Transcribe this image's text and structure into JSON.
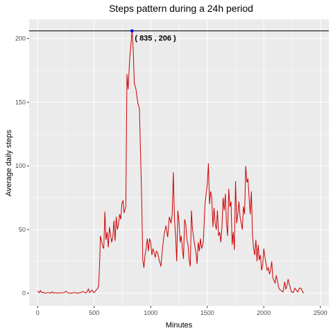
{
  "chart_data": {
    "type": "line",
    "title": "Steps pattern during a 24h period",
    "xlabel": "Minutes",
    "ylabel": "Average daily steps",
    "xlim": [
      -75,
      2575
    ],
    "ylim": [
      -10,
      215
    ],
    "x_ticks": [
      0,
      500,
      1000,
      1500,
      2000,
      2500
    ],
    "y_ticks": [
      0,
      50,
      100,
      150,
      200
    ],
    "grid": true,
    "background": "#ebebeb",
    "series": [
      {
        "color": "#cc0000",
        "points": [
          [
            0,
            1.7
          ],
          [
            15,
            0.3
          ],
          [
            25,
            2.1
          ],
          [
            35,
            0.5
          ],
          [
            50,
            0.8
          ],
          [
            60,
            0.1
          ],
          [
            100,
            0.5
          ],
          [
            115,
            0
          ],
          [
            130,
            1.2
          ],
          [
            140,
            0.2
          ],
          [
            160,
            0.5
          ],
          [
            180,
            0.1
          ],
          [
            200,
            0.3
          ],
          [
            230,
            0.4
          ],
          [
            250,
            1.5
          ],
          [
            270,
            0.2
          ],
          [
            300,
            0.1
          ],
          [
            320,
            0.5
          ],
          [
            340,
            0.3
          ],
          [
            355,
            0.1
          ],
          [
            380,
            0.5
          ],
          [
            400,
            1.3
          ],
          [
            430,
            0.2
          ],
          [
            450,
            3.3
          ],
          [
            460,
            0.5
          ],
          [
            480,
            2.5
          ],
          [
            500,
            0.3
          ],
          [
            520,
            2.8
          ],
          [
            530,
            3.5
          ],
          [
            540,
            6
          ],
          [
            550,
            28
          ],
          [
            555,
            45
          ],
          [
            565,
            41
          ],
          [
            575,
            37
          ],
          [
            585,
            35
          ],
          [
            595,
            64
          ],
          [
            605,
            42
          ],
          [
            615,
            48
          ],
          [
            625,
            36
          ],
          [
            635,
            52
          ],
          [
            645,
            46
          ],
          [
            655,
            40
          ],
          [
            665,
            44
          ],
          [
            675,
            57
          ],
          [
            685,
            41
          ],
          [
            695,
            60
          ],
          [
            705,
            50
          ],
          [
            715,
            54
          ],
          [
            725,
            62
          ],
          [
            735,
            58
          ],
          [
            745,
            70
          ],
          [
            755,
            73
          ],
          [
            765,
            63
          ],
          [
            780,
            68
          ],
          [
            790,
            172
          ],
          [
            800,
            160
          ],
          [
            815,
            185
          ],
          [
            825,
            195
          ],
          [
            835,
            206
          ],
          [
            845,
            192
          ],
          [
            855,
            165
          ],
          [
            870,
            160
          ],
          [
            885,
            150
          ],
          [
            900,
            145
          ],
          [
            910,
            110
          ],
          [
            920,
            75
          ],
          [
            930,
            26
          ],
          [
            940,
            20
          ],
          [
            950,
            30
          ],
          [
            960,
            35
          ],
          [
            970,
            43
          ],
          [
            980,
            33
          ],
          [
            990,
            43
          ],
          [
            1000,
            40
          ],
          [
            1010,
            30
          ],
          [
            1020,
            35
          ],
          [
            1030,
            32
          ],
          [
            1040,
            28
          ],
          [
            1050,
            33
          ],
          [
            1060,
            32
          ],
          [
            1075,
            26
          ],
          [
            1090,
            21
          ],
          [
            1105,
            36
          ],
          [
            1120,
            47
          ],
          [
            1135,
            53
          ],
          [
            1150,
            44
          ],
          [
            1165,
            60
          ],
          [
            1180,
            55
          ],
          [
            1190,
            62
          ],
          [
            1200,
            95
          ],
          [
            1210,
            58
          ],
          [
            1220,
            45
          ],
          [
            1230,
            25
          ],
          [
            1240,
            65
          ],
          [
            1250,
            56
          ],
          [
            1260,
            40
          ],
          [
            1270,
            45
          ],
          [
            1280,
            35
          ],
          [
            1290,
            27
          ],
          [
            1300,
            58
          ],
          [
            1310,
            54
          ],
          [
            1320,
            42
          ],
          [
            1330,
            38
          ],
          [
            1340,
            26
          ],
          [
            1350,
            21
          ],
          [
            1360,
            65
          ],
          [
            1370,
            50
          ],
          [
            1385,
            40
          ],
          [
            1400,
            32
          ],
          [
            1410,
            23
          ],
          [
            1420,
            40
          ],
          [
            1430,
            33
          ],
          [
            1440,
            43
          ],
          [
            1450,
            35
          ],
          [
            1465,
            40
          ],
          [
            1480,
            70
          ],
          [
            1490,
            78
          ],
          [
            1500,
            85
          ],
          [
            1510,
            102
          ],
          [
            1520,
            70
          ],
          [
            1530,
            80
          ],
          [
            1540,
            75
          ],
          [
            1550,
            52
          ],
          [
            1560,
            67
          ],
          [
            1570,
            55
          ],
          [
            1580,
            50
          ],
          [
            1590,
            65
          ],
          [
            1600,
            45
          ],
          [
            1610,
            48
          ],
          [
            1620,
            40
          ],
          [
            1630,
            52
          ],
          [
            1640,
            75
          ],
          [
            1650,
            65
          ],
          [
            1660,
            78
          ],
          [
            1670,
            55
          ],
          [
            1680,
            45
          ],
          [
            1690,
            82
          ],
          [
            1700,
            68
          ],
          [
            1710,
            72
          ],
          [
            1720,
            38
          ],
          [
            1730,
            48
          ],
          [
            1740,
            34
          ],
          [
            1750,
            88
          ],
          [
            1760,
            55
          ],
          [
            1770,
            62
          ],
          [
            1780,
            72
          ],
          [
            1790,
            60
          ],
          [
            1800,
            55
          ],
          [
            1810,
            50
          ],
          [
            1820,
            68
          ],
          [
            1830,
            62
          ],
          [
            1840,
            100
          ],
          [
            1850,
            87
          ],
          [
            1860,
            90
          ],
          [
            1870,
            75
          ],
          [
            1880,
            62
          ],
          [
            1890,
            80
          ],
          [
            1900,
            46
          ],
          [
            1910,
            35
          ],
          [
            1920,
            30
          ],
          [
            1930,
            42
          ],
          [
            1940,
            25
          ],
          [
            1950,
            38
          ],
          [
            1960,
            26
          ],
          [
            1970,
            30
          ],
          [
            1980,
            18
          ],
          [
            1990,
            22
          ],
          [
            2000,
            35
          ],
          [
            2010,
            28
          ],
          [
            2020,
            23
          ],
          [
            2030,
            18
          ],
          [
            2040,
            20
          ],
          [
            2050,
            15
          ],
          [
            2060,
            18
          ],
          [
            2070,
            25
          ],
          [
            2080,
            12
          ],
          [
            2090,
            10
          ],
          [
            2100,
            8
          ],
          [
            2110,
            14
          ],
          [
            2120,
            10
          ],
          [
            2130,
            5
          ],
          [
            2140,
            3
          ],
          [
            2155,
            2
          ],
          [
            2170,
            1
          ],
          [
            2185,
            9
          ],
          [
            2195,
            3
          ],
          [
            2205,
            6
          ],
          [
            2215,
            11
          ],
          [
            2225,
            7
          ],
          [
            2235,
            4
          ],
          [
            2245,
            1
          ],
          [
            2260,
            0.5
          ],
          [
            2275,
            4
          ],
          [
            2290,
            2
          ],
          [
            2300,
            1
          ],
          [
            2315,
            4
          ],
          [
            2325,
            4
          ],
          [
            2335,
            3
          ],
          [
            2345,
            0.5
          ],
          [
            2355,
            0.5
          ]
        ]
      }
    ],
    "reference_line": {
      "y": 206,
      "color": "#000000"
    },
    "max_point": {
      "x": 835,
      "y": 206,
      "color": "#0000ff",
      "label": "( 835 , 206 )"
    }
  }
}
